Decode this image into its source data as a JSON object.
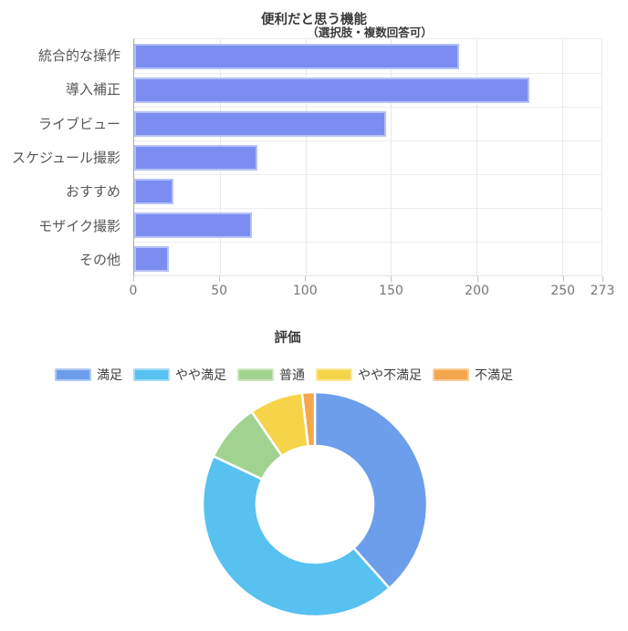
{
  "chart_data": [
    {
      "type": "bar",
      "orientation": "horizontal",
      "title": "便利だと思う機能",
      "subtitle": "（選択肢・複数回答可）",
      "categories": [
        "統合的な操作",
        "導入補正",
        "ライブビュー",
        "スケジュール撮影",
        "おすすめ",
        "モザイク撮影",
        "その他"
      ],
      "values": [
        190,
        231,
        147,
        72,
        23,
        69,
        20
      ],
      "xlim": [
        0,
        273
      ],
      "x_ticks": [
        0,
        50,
        100,
        150,
        200,
        250,
        273
      ],
      "x_gridlines": [
        50,
        100,
        150,
        200,
        250
      ],
      "grid": true,
      "legend": "none",
      "bar_color": "#7b8df0"
    },
    {
      "type": "pie",
      "donut": true,
      "title": "評価",
      "labels": [
        "満足",
        "やや満足",
        "普通",
        "やや不満足",
        "不満足"
      ],
      "values": [
        105,
        119,
        23,
        21,
        5
      ],
      "total": 273,
      "colors": [
        "#6d9eeb",
        "#57c1f0",
        "#a2d28f",
        "#f6d44a",
        "#f3a74c"
      ],
      "legend_position": "top",
      "start_angle": "12-oclock",
      "direction": "clockwise"
    }
  ]
}
